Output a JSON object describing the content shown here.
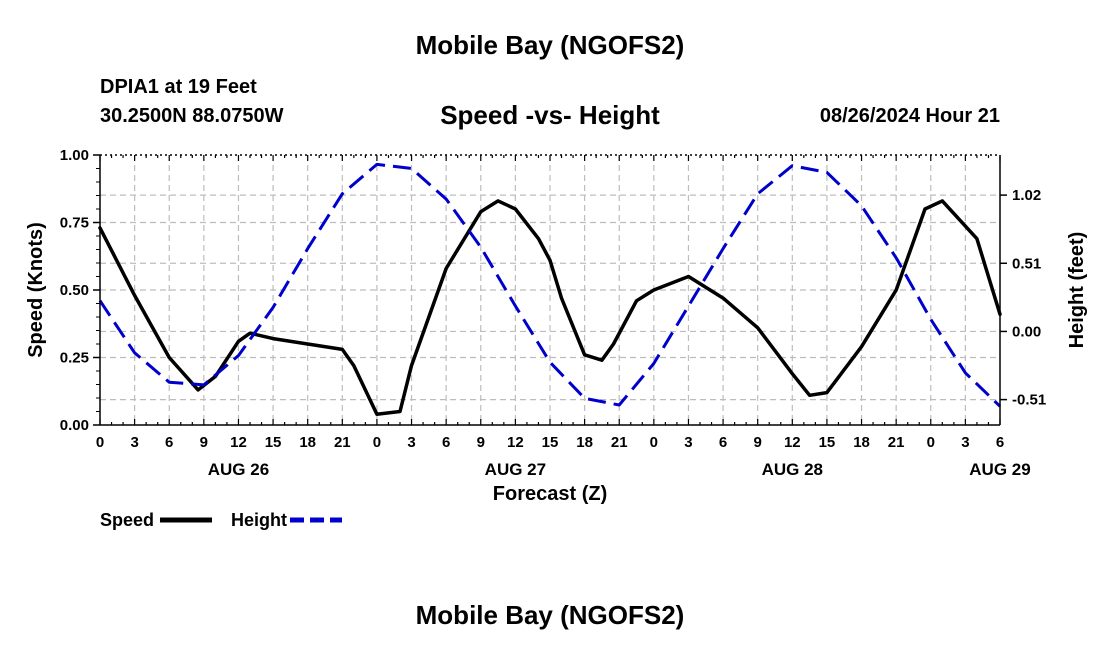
{
  "page": {
    "title_top": "Mobile Bay (NGOFS2)",
    "station": "DPIA1 at 19 Feet",
    "coords": "30.2500N  88.0750W",
    "subtitle": "Speed -vs- Height",
    "datetime": "08/26/2024 Hour 21",
    "title_bottom": "Mobile Bay (NGOFS2)"
  },
  "chart_data": {
    "type": "line",
    "xlabel": "Forecast (Z)",
    "ylabel_left": "Speed (Knots)",
    "ylabel_right": "Height (feet)",
    "x_range_hours": [
      0,
      78
    ],
    "x_tick_labels": [
      "0",
      "3",
      "6",
      "9",
      "12",
      "15",
      "18",
      "21",
      "0",
      "3",
      "6",
      "9",
      "12",
      "15",
      "18",
      "21",
      "0",
      "3",
      "6",
      "9",
      "12",
      "15",
      "18",
      "21",
      "0",
      "3",
      "6"
    ],
    "date_labels": [
      {
        "label": "AUG 26",
        "at_hour": 12
      },
      {
        "label": "AUG 27",
        "at_hour": 36
      },
      {
        "label": "AUG 28",
        "at_hour": 60
      },
      {
        "label": "AUG 29",
        "at_hour": 78
      }
    ],
    "ylim_left": [
      0,
      1.0
    ],
    "y_ticks_left": [
      "0.00",
      "0.25",
      "0.50",
      "0.75",
      "1.00"
    ],
    "y_ticks_left_values": [
      0,
      0.25,
      0.5,
      0.75,
      1.0
    ],
    "y_ticks_right": [
      "1.02",
      "0.51",
      "0.00",
      "-0.51"
    ],
    "y_ticks_right_values": [
      1.02,
      0.51,
      0.0,
      -0.51
    ],
    "ylim_right": [
      -0.7,
      1.32
    ],
    "grid": true,
    "legend_position": "bottom-left",
    "series": [
      {
        "name": "Speed",
        "axis": "left",
        "color": "#000000",
        "dash": "solid",
        "x": [
          0,
          3,
          6,
          8.5,
          10,
          12,
          13,
          15,
          18,
          21,
          22,
          24,
          26,
          27,
          30,
          33,
          34.5,
          36,
          38,
          39,
          40,
          42,
          43.5,
          44.5,
          46.5,
          48,
          51,
          54,
          57,
          60,
          61.5,
          63,
          66,
          69,
          70.5,
          71.5,
          73,
          76,
          78
        ],
        "values": [
          0.73,
          0.48,
          0.25,
          0.13,
          0.18,
          0.31,
          0.34,
          0.32,
          0.3,
          0.28,
          0.22,
          0.04,
          0.05,
          0.22,
          0.58,
          0.79,
          0.83,
          0.8,
          0.69,
          0.61,
          0.47,
          0.26,
          0.24,
          0.3,
          0.46,
          0.5,
          0.55,
          0.47,
          0.36,
          0.19,
          0.11,
          0.12,
          0.29,
          0.5,
          0.68,
          0.8,
          0.83,
          0.69,
          0.41
        ]
      },
      {
        "name": "Height",
        "axis": "right",
        "color": "#0000cc",
        "dash": "dashed",
        "x": [
          0,
          3,
          6,
          9,
          12,
          15,
          18,
          21,
          24,
          27,
          30,
          33,
          36,
          39,
          42,
          45,
          48,
          51,
          54,
          57,
          60,
          63,
          66,
          69,
          72,
          75,
          78
        ],
        "values": [
          0.23,
          -0.16,
          -0.38,
          -0.4,
          -0.18,
          0.18,
          0.62,
          1.03,
          1.25,
          1.22,
          0.99,
          0.63,
          0.19,
          -0.23,
          -0.5,
          -0.55,
          -0.24,
          0.19,
          0.62,
          1.03,
          1.24,
          1.19,
          0.94,
          0.55,
          0.09,
          -0.31,
          -0.56
        ]
      }
    ]
  }
}
